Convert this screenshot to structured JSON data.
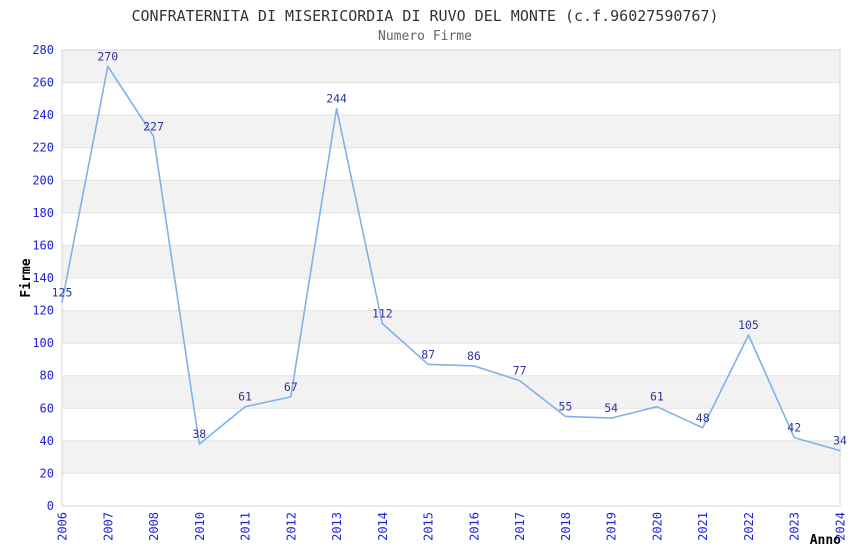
{
  "chart_data": {
    "type": "line",
    "title": "CONFRATERNITA DI MISERICORDIA DI RUVO DEL MONTE (c.f.96027590767)",
    "subtitle": "Numero Firme",
    "xlabel": "Anno",
    "ylabel": "Firme",
    "categories": [
      "2006",
      "2007",
      "2008",
      "2010",
      "2011",
      "2012",
      "2013",
      "2014",
      "2015",
      "2016",
      "2017",
      "2018",
      "2019",
      "2020",
      "2021",
      "2022",
      "2023",
      "2024"
    ],
    "values": [
      125,
      270,
      227,
      38,
      61,
      67,
      244,
      112,
      87,
      86,
      77,
      55,
      54,
      61,
      48,
      105,
      42,
      34
    ],
    "ylim": [
      0,
      280
    ],
    "ytick_step": 20,
    "grid": true,
    "alternating_bands": true,
    "legend": "none",
    "data_labels_visible": true,
    "colors": {
      "line": "#7FB2E8",
      "data_label": "#333399",
      "tick_label": "#2222DD",
      "band": "#F2F2F2",
      "gridline": "#E2E2E2",
      "plot_border": "#D6D6D6",
      "title": "#333333",
      "subtitle": "#666666",
      "axis_title": "#000000",
      "background": "#FFFFFF"
    }
  }
}
